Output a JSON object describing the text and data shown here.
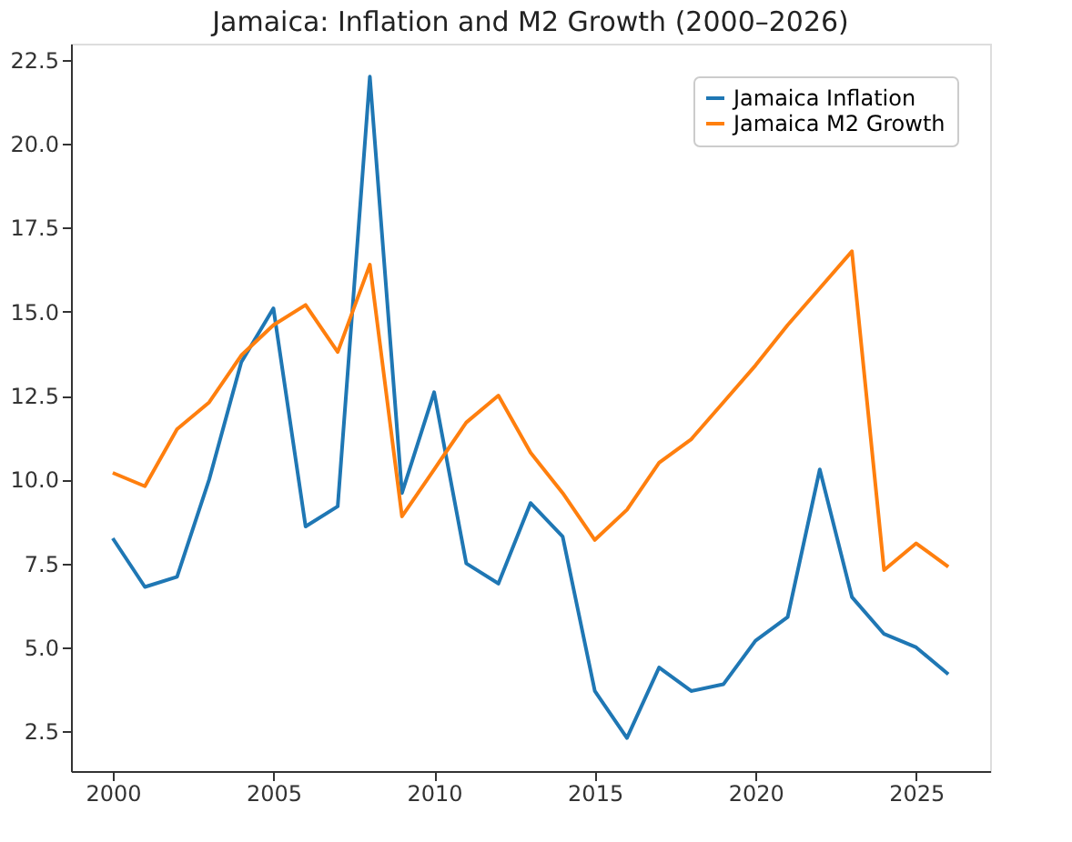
{
  "chart_data": {
    "type": "line",
    "title": "Jamaica: Inflation and M2 Growth (2000–2026)",
    "x": [
      2000,
      2001,
      2002,
      2003,
      2004,
      2005,
      2006,
      2007,
      2008,
      2009,
      2010,
      2011,
      2012,
      2013,
      2014,
      2015,
      2016,
      2017,
      2018,
      2019,
      2020,
      2021,
      2022,
      2023,
      2024,
      2025,
      2026
    ],
    "series": [
      {
        "name": "Jamaica Inflation",
        "color": "#1f77b4",
        "values": [
          8.25,
          6.8,
          7.1,
          10.0,
          13.5,
          15.1,
          8.6,
          9.2,
          22.0,
          9.6,
          12.6,
          7.5,
          6.9,
          9.3,
          8.3,
          3.7,
          2.3,
          4.4,
          3.7,
          3.9,
          5.2,
          5.9,
          10.3,
          6.5,
          5.4,
          5.0,
          4.2
        ]
      },
      {
        "name": "Jamaica M2 Growth",
        "color": "#ff7f0e",
        "values": [
          10.2,
          9.8,
          11.5,
          12.3,
          13.7,
          14.6,
          15.2,
          13.8,
          16.4,
          8.9,
          10.3,
          11.7,
          12.5,
          10.8,
          9.6,
          8.2,
          9.1,
          10.5,
          11.2,
          12.3,
          13.4,
          14.6,
          15.7,
          16.8,
          7.3,
          8.1,
          7.4
        ]
      }
    ],
    "xlim": [
      1998.7,
      2027.3
    ],
    "xticks": [
      2000,
      2005,
      2010,
      2015,
      2020,
      2025
    ],
    "ylim": [
      1.315,
      22.985
    ],
    "yticks": [
      {
        "value": 2.5,
        "label": "2.5"
      },
      {
        "value": 5,
        "label": "5.0"
      },
      {
        "value": 7.5,
        "label": "7.5"
      },
      {
        "value": 10,
        "label": "10.0"
      },
      {
        "value": 12.5,
        "label": "12.5"
      },
      {
        "value": 15,
        "label": "15.0"
      },
      {
        "value": 17.5,
        "label": "17.5"
      },
      {
        "value": 20,
        "label": "20.0"
      },
      {
        "value": 22.5,
        "label": "22.5"
      }
    ],
    "legend": "top right",
    "grid": false,
    "marker": "none",
    "line_style": "solid"
  }
}
